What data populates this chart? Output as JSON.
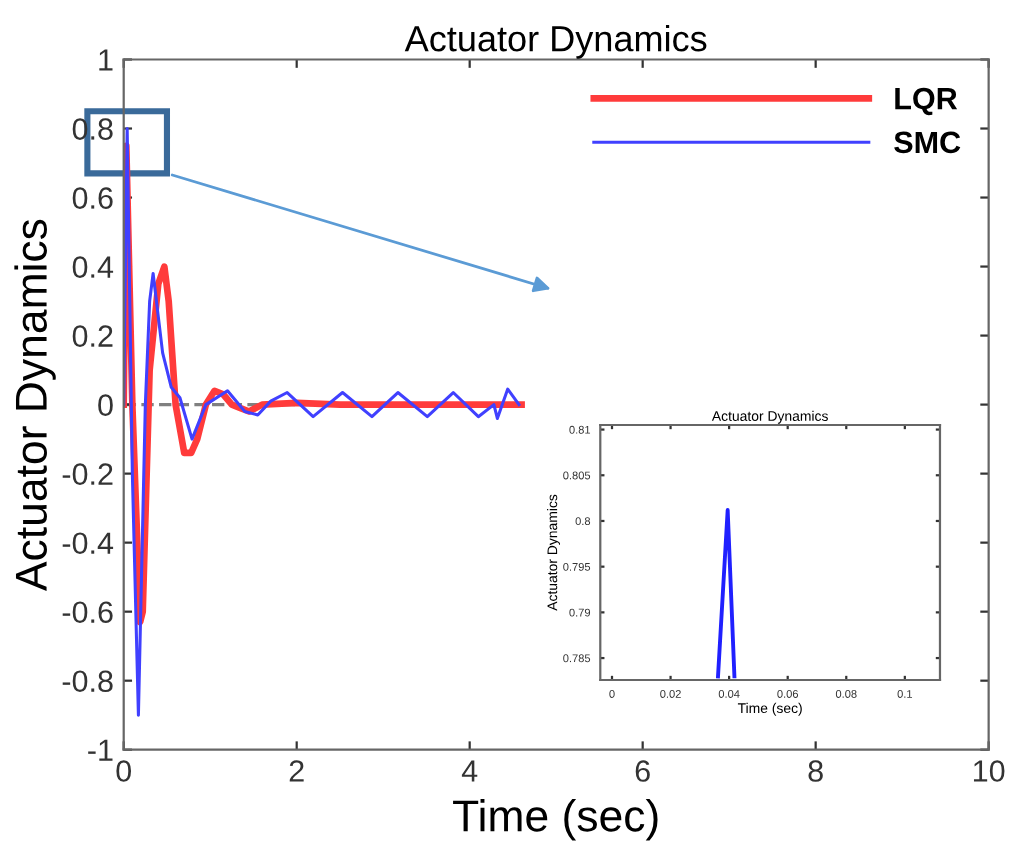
{
  "chart_data": [
    {
      "type": "line",
      "title": "Actuator Dynamics",
      "xlabel": "Time (sec)",
      "ylabel": "Actuator Dynamics",
      "xlim": [
        0,
        10
      ],
      "ylim": [
        -1,
        1
      ],
      "xticks": [
        0,
        2,
        4,
        6,
        8,
        10
      ],
      "yticks": [
        -1,
        -0.8,
        -0.6,
        -0.4,
        -0.2,
        0,
        0.2,
        0.4,
        0.6,
        0.8,
        1
      ],
      "legend": "top right",
      "grid": false,
      "ref_lines": [
        {
          "axis": "y",
          "value": 0,
          "color": "#808080",
          "line_style": "dashed"
        }
      ],
      "series": [
        {
          "name": "LQR",
          "color": "#ff3b3b",
          "x": [
            0,
            0.03,
            0.1,
            0.19,
            0.22,
            0.3,
            0.4,
            0.47,
            0.52,
            0.6,
            0.7,
            0.78,
            0.85,
            0.95,
            1.05,
            1.15,
            1.25,
            1.35,
            1.45,
            1.6,
            2.0,
            2.5,
            3.0,
            3.5,
            4.0,
            4.6
          ],
          "values": [
            0,
            0.75,
            0.0,
            -0.63,
            -0.6,
            0.1,
            0.35,
            0.4,
            0.3,
            0.0,
            -0.14,
            -0.14,
            -0.1,
            0,
            0.04,
            0.03,
            0.0,
            -0.01,
            -0.02,
            0,
            0.005,
            0,
            0,
            0,
            0,
            0
          ]
        },
        {
          "name": "SMC",
          "color": "#4040ff",
          "x": [
            0,
            0.04,
            0.1,
            0.17,
            0.25,
            0.3,
            0.34,
            0.45,
            0.55,
            0.65,
            0.79,
            0.95,
            1.2,
            1.4,
            1.55,
            1.7,
            1.89,
            2.19,
            2.53,
            2.87,
            3.17,
            3.51,
            3.81,
            4.1,
            4.28,
            4.32,
            4.44,
            4.57
          ],
          "values": [
            0,
            0.8,
            -0.2,
            -0.9,
            0.0,
            0.3,
            0.38,
            0.15,
            0.05,
            0.02,
            -0.1,
            0,
            0.04,
            -0.02,
            -0.03,
            0.01,
            0.035,
            -0.035,
            0.035,
            -0.035,
            0.035,
            -0.035,
            0.035,
            -0.035,
            0.0,
            -0.04,
            0.045,
            0
          ]
        }
      ]
    },
    {
      "type": "line",
      "title": "Actuator Dynamics",
      "xlabel": "Time (sec)",
      "ylabel": "Actuator Dynamics",
      "xlim": [
        -0.004,
        0.112
      ],
      "ylim": [
        0.7826,
        0.8105
      ],
      "xticks": [
        0,
        0.02,
        0.04,
        0.06,
        0.08,
        0.1
      ],
      "yticks": [
        0.785,
        0.79,
        0.795,
        0.8,
        0.805,
        0.81
      ],
      "legend": false,
      "grid": false,
      "series": [
        {
          "color": "#2020ff",
          "x": [
            0.0362,
            0.0395,
            0.0418
          ],
          "values": [
            0.783,
            0.8012,
            0.783
          ]
        }
      ]
    }
  ]
}
